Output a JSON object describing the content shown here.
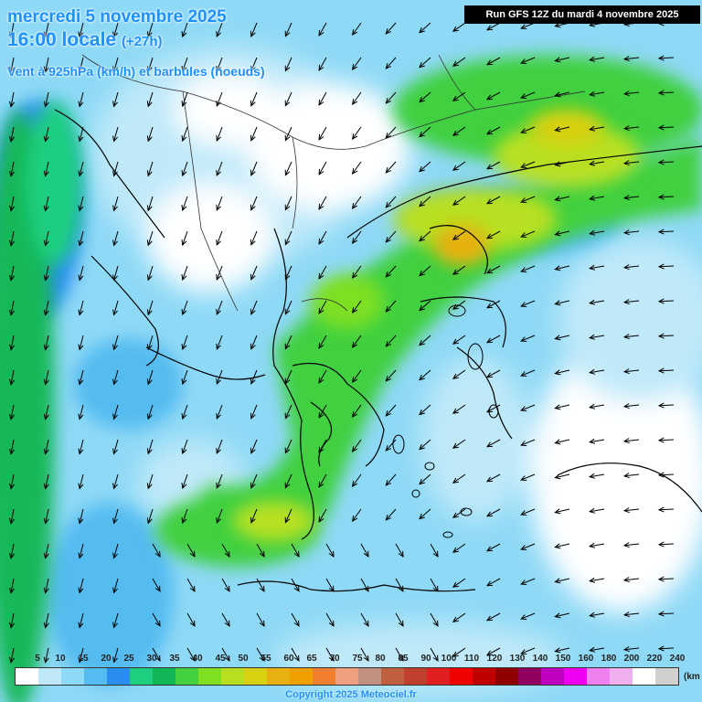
{
  "header": {
    "date": "mercredi 5 novembre 2025",
    "time": "16:00 locale",
    "lead": "(+27h)",
    "parameter": "Vent à 925hPa (km/h) et barbules (noeuds)",
    "run": "Run GFS 12Z du mardi 4 novembre 2025"
  },
  "legend": {
    "unit": "(km",
    "ticks": [
      "5",
      "10",
      "15",
      "20",
      "25",
      "30",
      "35",
      "40",
      "45",
      "50",
      "55",
      "60",
      "65",
      "70",
      "75",
      "80",
      "85",
      "90",
      "100",
      "110",
      "120",
      "130",
      "140",
      "150",
      "160",
      "180",
      "200",
      "220",
      "240"
    ],
    "colors": [
      "#ffffff",
      "#bfe9f9",
      "#8ed9f6",
      "#54bcf0",
      "#2a8ef0",
      "#1fcf80",
      "#12b858",
      "#40d040",
      "#7ee020",
      "#b8e020",
      "#d8d010",
      "#e8b010",
      "#f0a000",
      "#f08030",
      "#f0a080",
      "#c09080",
      "#c06040",
      "#c04030",
      "#e02020",
      "#f00000",
      "#c00000",
      "#900000",
      "#900060",
      "#c000c0",
      "#f000f0",
      "#f080f0",
      "#f0b0f0",
      "#ffffff",
      "#d0d0d0"
    ]
  },
  "copyright": "Copyright 2025 Meteociel.fr"
}
